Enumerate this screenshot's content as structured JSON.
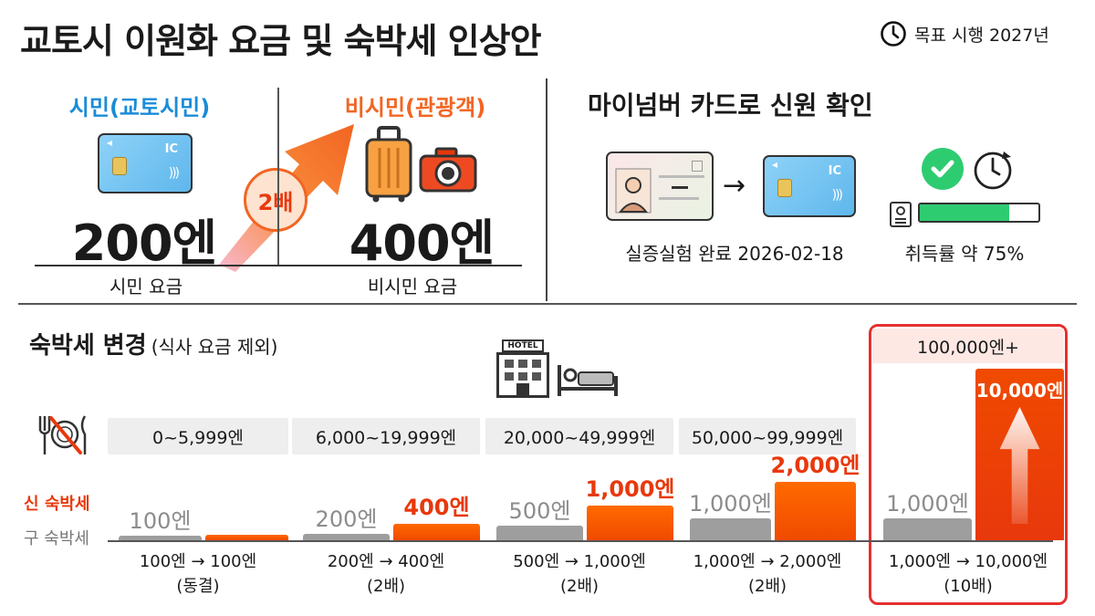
{
  "header": {
    "title": "교토시 이원화 요금 및 숙박세 인상안",
    "target_label": "목표 시행 2027년",
    "target_icon": "clock-icon"
  },
  "fare": {
    "citizen": {
      "heading": "시민(교토시민)",
      "card_text": "IC",
      "price": "200엔",
      "caption": "시민 요금",
      "color": "#1a8cd8"
    },
    "multiplier": "2배",
    "visitor": {
      "heading": "비시민(관광객)",
      "price": "400엔",
      "caption": "비시민 요금",
      "color": "#f26522"
    }
  },
  "mynumber": {
    "heading": "마이넘버 카드로 신원 확인",
    "card_text": "IC",
    "trial_text": "실증실험 완료 2026-02-18",
    "acquisition_text": "취득률 약 75%",
    "acquisition_rate": 0.75,
    "accent": "#2ecc71"
  },
  "tax": {
    "heading": "숙박세 변경",
    "subheading": "(식사 요금 제외)",
    "hotel_sign": "HOTEL",
    "legend_new": "신 숙박세",
    "legend_old": "구 숙박세",
    "old_color": "#9e9e9e",
    "new_color": "#f04a00",
    "tiers": [
      {
        "range": "0~5,999엔",
        "old_label": "100엔",
        "new_label": "",
        "old": 100,
        "new": 100,
        "compare": "100엔 → 100엔",
        "note": "(동결)"
      },
      {
        "range": "6,000~19,999엔",
        "old_label": "200엔",
        "new_label": "400엔",
        "old": 200,
        "new": 400,
        "compare": "200엔 → 400엔",
        "note": "(2배)"
      },
      {
        "range": "20,000~49,999엔",
        "old_label": "500엔",
        "new_label": "1,000엔",
        "old": 500,
        "new": 1000,
        "compare": "500엔 → 1,000엔",
        "note": "(2배)"
      },
      {
        "range": "50,000~99,999엔",
        "old_label": "1,000엔",
        "new_label": "2,000엔",
        "old": 1000,
        "new": 2000,
        "compare": "1,000엔 → 2,000엔",
        "note": "(2배)"
      },
      {
        "range": "100,000엔+",
        "old_label": "1,000엔",
        "new_label": "10,000엔",
        "old": 1000,
        "new": 10000,
        "compare": "1,000엔 → 10,000엔",
        "note": "(10배)"
      }
    ]
  }
}
